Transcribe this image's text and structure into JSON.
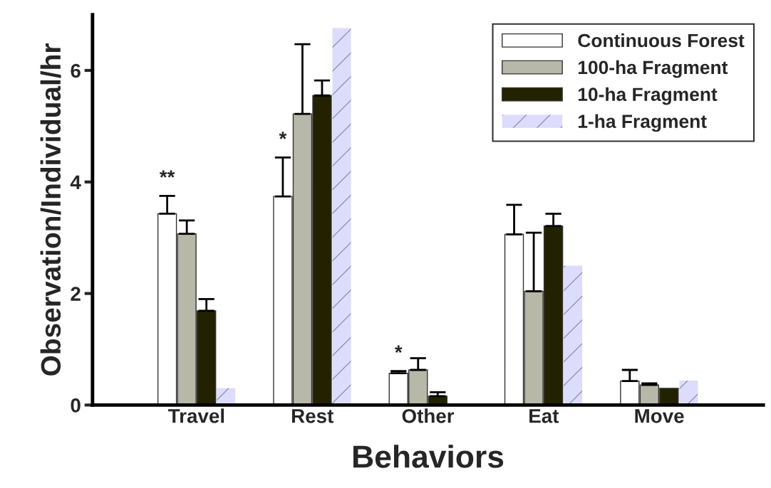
{
  "chart_data": {
    "type": "bar",
    "xlabel": "Behaviors",
    "ylabel": "Observation/Individual/hr",
    "categories": [
      "Travel",
      "Rest",
      "Other",
      "Eat",
      "Move"
    ],
    "series": [
      {
        "name": "Continuous Forest",
        "color": "#ffffff",
        "values": [
          3.43,
          3.74,
          0.57,
          3.06,
          0.43
        ],
        "errors": [
          [
            3.43,
            3.75
          ],
          [
            3.74,
            4.44
          ],
          [
            0.57,
            0.61
          ],
          [
            3.06,
            3.59
          ],
          [
            0.43,
            0.63
          ]
        ]
      },
      {
        "name": "100-ha Fragment",
        "color": "#b8b8a8",
        "values": [
          3.07,
          5.22,
          0.63,
          2.04,
          0.36
        ],
        "errors": [
          [
            3.07,
            3.31
          ],
          [
            5.22,
            6.47
          ],
          [
            0.63,
            0.84
          ],
          [
            2.04,
            3.09
          ],
          [
            0.36,
            0.39
          ]
        ]
      },
      {
        "name": "10-ha Fragment",
        "color": "#222200",
        "values": [
          1.69,
          5.55,
          0.16,
          3.21,
          0.3
        ],
        "errors": [
          [
            1.69,
            1.9
          ],
          [
            5.55,
            5.82
          ],
          [
            0.16,
            0.23
          ],
          [
            3.21,
            3.43
          ],
          null
        ]
      },
      {
        "name": "1-ha Fragment",
        "color": "#dcdcfc",
        "values": [
          0.3,
          6.76,
          null,
          2.5,
          0.44
        ]
      }
    ],
    "ylim": [
      0,
      7
    ],
    "yticks": [
      0,
      2,
      4,
      6
    ],
    "grid": false,
    "legend": "top right",
    "annotations": [
      "**",
      "*",
      "*"
    ]
  }
}
